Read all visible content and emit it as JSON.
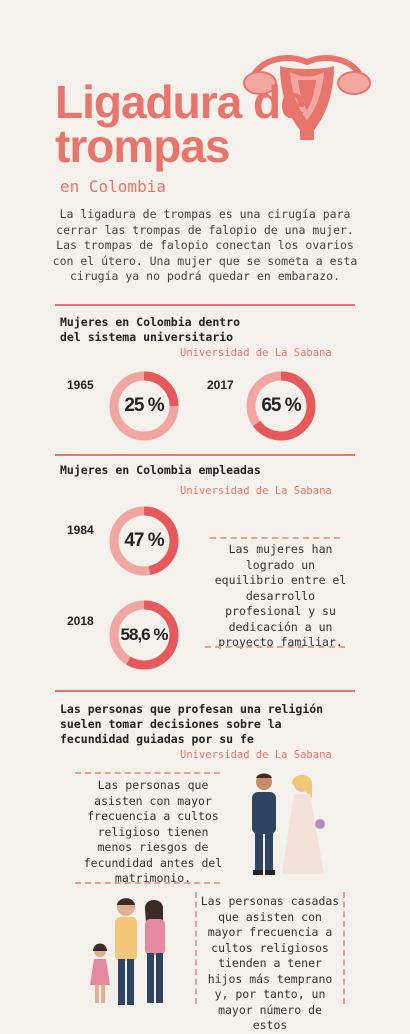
{
  "header": {
    "title_line1": "Ligadura de",
    "title_line2": "trompas",
    "subtitle": "en Colombia",
    "uterus_icon": "uterus-icon"
  },
  "intro": "La ligadura de trompas es una cirugía para cerrar las trompas de falopio de una mujer. Las trompas de falopio conectan los ovarios con el útero. Una mujer que se someta a esta cirugía ya no podrá quedar en embarazo.",
  "section1": {
    "heading_line1": "Mujeres en Colombia dentro",
    "heading_line2": "del sistema universitario",
    "source": "Universidad de La Sabana",
    "stats": [
      {
        "year": "1965",
        "label": "25 %",
        "value": 25
      },
      {
        "year": "2017",
        "label": "65 %",
        "value": 65
      }
    ]
  },
  "section2": {
    "heading": "Mujeres en Colombia empleadas",
    "source": "Universidad de La Sabana",
    "stats": [
      {
        "year": "1984",
        "label": "47 %",
        "value": 47
      },
      {
        "year": "2018",
        "label": "58,6 %",
        "value": 58.6
      }
    ],
    "note": "Las mujeres han logrado un equilibrio entre el desarrollo profesional y su dedicación a un proyecto familiar."
  },
  "section3": {
    "heading_line1": "Las personas que profesan una religión",
    "heading_line2": "suelen tomar decisiones sobre la",
    "heading_line3": "fecundidad guiadas por su fe",
    "source": "Universidad de La Sabana",
    "note1": "Las personas que asisten con mayor frecuencia a cultos religioso tienen menos riesgos de fecundidad antes del matrimonio.",
    "note2": "Las personas casadas que asisten con mayor frecuencia a cultos religiosos tienden a tener hijos más temprano y, por tanto, un mayor número de estos",
    "couple_icon": "wedding-couple-illustration",
    "family_icon": "family-illustration"
  },
  "colors": {
    "accent": "#e8756b",
    "donut_fill": "#e5595a",
    "donut_track": "#f2a6a2",
    "background": "#f4f0ec"
  }
}
